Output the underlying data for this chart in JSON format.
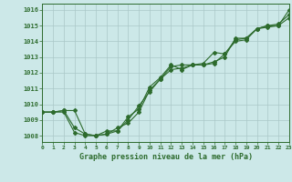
{
  "title": "Graphe pression niveau de la mer (hPa)",
  "bg_color": "#cce8e8",
  "grid_color": "#aac8c8",
  "line_color": "#2d6b2d",
  "x_ticks": [
    0,
    1,
    2,
    3,
    4,
    5,
    6,
    7,
    8,
    9,
    10,
    11,
    12,
    13,
    14,
    15,
    16,
    17,
    18,
    19,
    20,
    21,
    22,
    23
  ],
  "y_ticks": [
    1008,
    1009,
    1010,
    1011,
    1012,
    1013,
    1014,
    1015,
    1016
  ],
  "xlim": [
    0,
    23
  ],
  "ylim": [
    1007.6,
    1016.4
  ],
  "series1": [
    1009.5,
    1009.5,
    1009.6,
    1009.6,
    1008.1,
    1008.0,
    1008.1,
    1008.5,
    1008.8,
    1009.5,
    1010.9,
    1011.6,
    1012.2,
    1012.3,
    1012.5,
    1012.5,
    1012.6,
    1013.2,
    1014.0,
    1014.1,
    1014.8,
    1014.9,
    1015.0,
    1016.0
  ],
  "series2": [
    1009.5,
    1009.5,
    1009.6,
    1008.5,
    1008.1,
    1008.0,
    1008.1,
    1008.3,
    1009.0,
    1009.9,
    1010.8,
    1011.6,
    1012.4,
    1012.5,
    1012.5,
    1012.6,
    1013.3,
    1013.2,
    1014.1,
    1014.2,
    1014.8,
    1015.0,
    1015.0,
    1015.5
  ],
  "series3": [
    1009.5,
    1009.5,
    1009.5,
    1008.2,
    1008.0,
    1008.0,
    1008.3,
    1008.3,
    1009.2,
    1009.7,
    1011.1,
    1011.7,
    1012.5,
    1012.2,
    1012.5,
    1012.5,
    1012.7,
    1013.0,
    1014.2,
    1014.2,
    1014.8,
    1015.0,
    1015.1,
    1015.7
  ]
}
